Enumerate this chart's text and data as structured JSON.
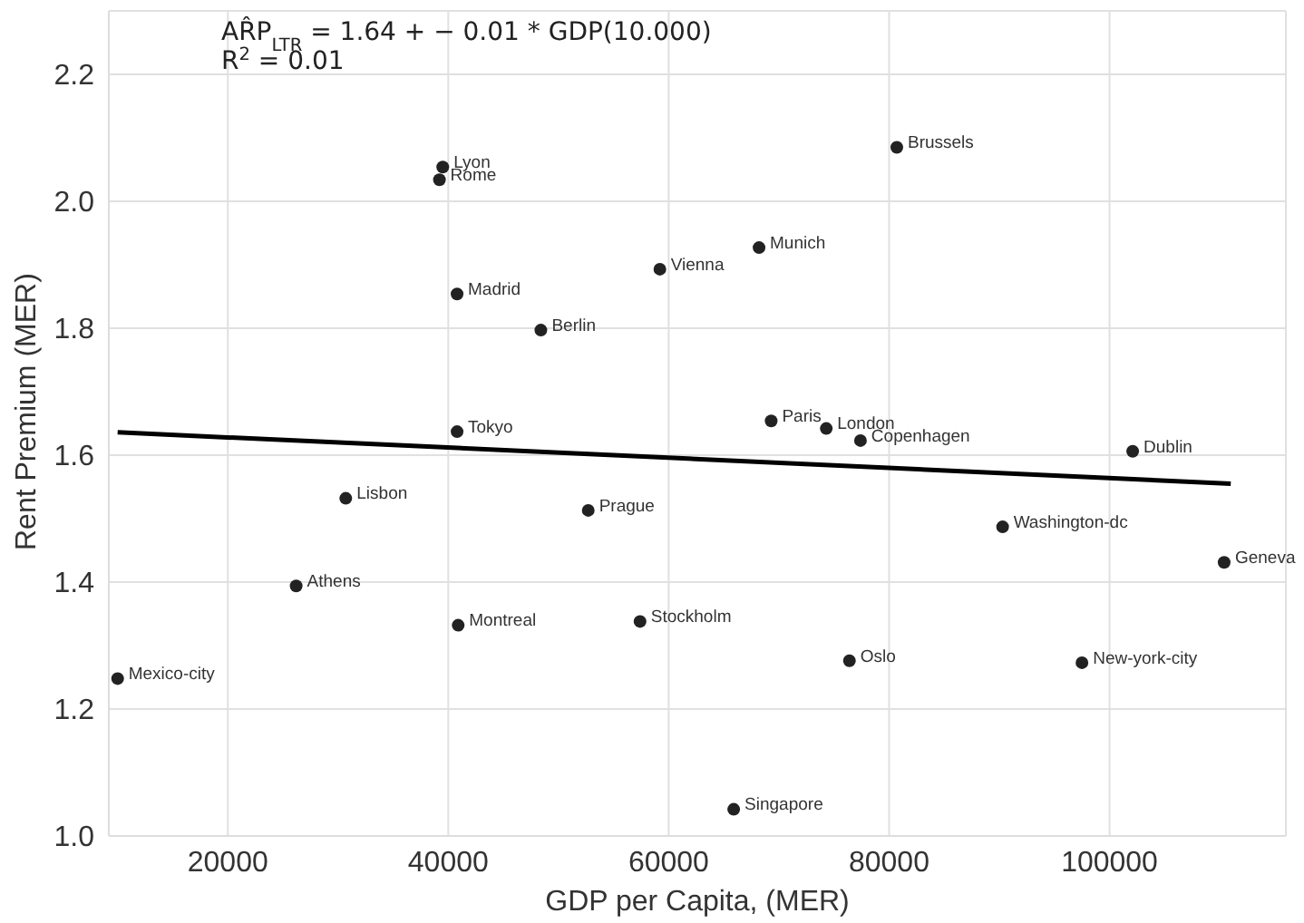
{
  "chart_data": {
    "type": "scatter",
    "xlabel": "GDP per Capita, (MER)",
    "ylabel": "Rent Premium (MER)",
    "xlim": [
      9200,
      116000
    ],
    "xticks": [
      20000,
      40000,
      60000,
      80000,
      100000
    ],
    "ylim": [
      1.0,
      2.3
    ],
    "yticks": [
      {
        "value": 1.0,
        "label": "1.0"
      },
      {
        "value": 1.2,
        "label": "1.2"
      },
      {
        "value": 1.4,
        "label": "1.4"
      },
      {
        "value": 1.6,
        "label": "1.6"
      },
      {
        "value": 1.8,
        "label": "1.8"
      },
      {
        "value": 2.0,
        "label": "2.0"
      },
      {
        "value": 2.2,
        "label": "2.2"
      }
    ],
    "grid": true,
    "marker": "circle",
    "series": [
      {
        "color": "#222222",
        "x": [
          39500,
          39200,
          40800,
          48400,
          40800,
          59200,
          68200,
          80700,
          69300,
          74300,
          77400,
          102100,
          10000,
          26200,
          30700,
          40900,
          52700,
          57400,
          76400,
          97500,
          90300,
          110400,
          65900
        ],
        "values": [
          2.054,
          2.034,
          1.854,
          1.797,
          1.637,
          1.893,
          1.927,
          2.085,
          1.654,
          1.642,
          1.623,
          1.606,
          1.248,
          1.394,
          1.532,
          1.332,
          1.513,
          1.338,
          1.276,
          1.273,
          1.487,
          1.431,
          1.042
        ]
      },
      {
        "type": "line",
        "color": "#000000",
        "x": [
          10000,
          111000
        ],
        "values": [
          1.636,
          1.555
        ],
        "marker": "none",
        "line_style": "solid"
      }
    ],
    "annotations": [
      "AR̂P$_{LTR}$ = 1.64 + − 0.01 * GDP(10.000)",
      "R$^{2}$ = 0.01",
      {
        "text": "Lyon",
        "x": 39500,
        "y": 2.054
      },
      {
        "text": "Rome",
        "x": 39200,
        "y": 2.034
      },
      {
        "text": "Madrid",
        "x": 40800,
        "y": 1.854
      },
      {
        "text": "Berlin",
        "x": 48400,
        "y": 1.797
      },
      {
        "text": "Tokyo",
        "x": 40800,
        "y": 1.637
      },
      {
        "text": "Vienna",
        "x": 59200,
        "y": 1.893
      },
      {
        "text": "Munich",
        "x": 68200,
        "y": 1.927
      },
      {
        "text": "Brussels",
        "x": 80700,
        "y": 2.085
      },
      {
        "text": "Paris",
        "x": 69300,
        "y": 1.654
      },
      {
        "text": "London",
        "x": 74300,
        "y": 1.642
      },
      {
        "text": "Copenhagen",
        "x": 77400,
        "y": 1.623
      },
      {
        "text": "Dublin",
        "x": 102100,
        "y": 1.606
      },
      {
        "text": "Mexico-city",
        "x": 10000,
        "y": 1.248
      },
      {
        "text": "Athens",
        "x": 26200,
        "y": 1.394
      },
      {
        "text": "Lisbon",
        "x": 30700,
        "y": 1.532
      },
      {
        "text": "Montreal",
        "x": 40900,
        "y": 1.332
      },
      {
        "text": "Prague",
        "x": 52700,
        "y": 1.513
      },
      {
        "text": "Stockholm",
        "x": 57400,
        "y": 1.338
      },
      {
        "text": "Oslo",
        "x": 76400,
        "y": 1.276
      },
      {
        "text": "New-york-city",
        "x": 97500,
        "y": 1.273
      },
      {
        "text": "Washington-dc",
        "x": 90300,
        "y": 1.487
      },
      {
        "text": "Geneva",
        "x": 110400,
        "y": 1.431
      },
      {
        "text": "Singapore",
        "x": 65900,
        "y": 1.042
      }
    ]
  }
}
